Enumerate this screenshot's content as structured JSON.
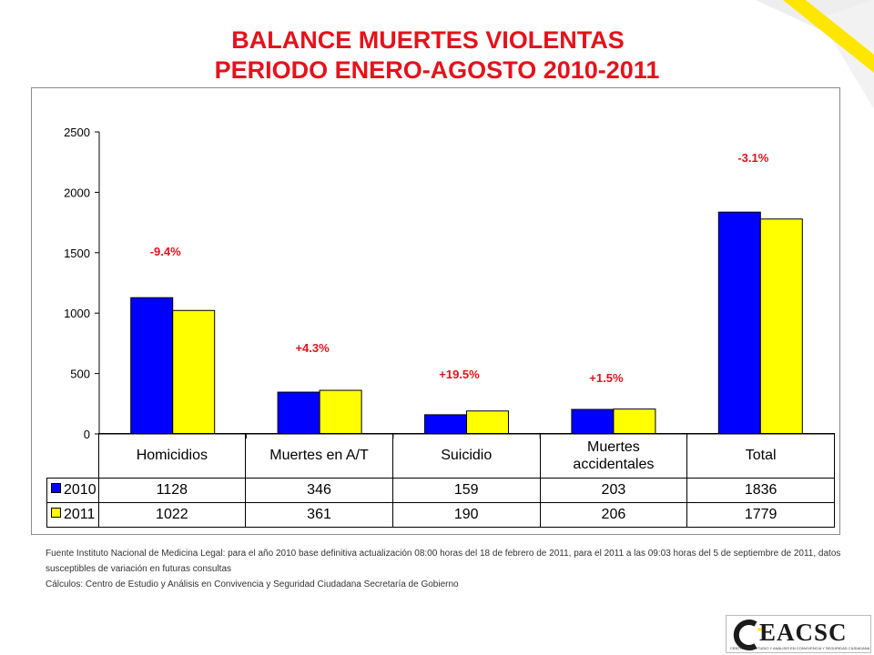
{
  "slide": {
    "title_line1": "BALANCE MUERTES VIOLENTAS",
    "title_line2": "PERIODO ENERO-AGOSTO 2010-2011",
    "footer_source": "Fuente Instituto Nacional de Medicina Legal: para el año 2010 base definitiva actualización 08:00 horas del 18 de febrero de 2011, para el 2011 a las 09:03 horas del 5 de septiembre de 2011, datos susceptibles de variación en futuras consultas",
    "footer_calc": "Cálculos: Centro de Estudio y Análisis en Convivencia y Seguridad Ciudadana Secretaría de Gobierno",
    "logo_text": "EACSC",
    "logo_subtitle": "CENTRO DE ESTUDIO Y ANÁLISIS EN CONVIVENCIA Y SEGURIDAD CIUDADANA"
  },
  "colors": {
    "title": "#e4121b",
    "series_2010": "#0000ff",
    "series_2011": "#ffff00",
    "annotation": "#e4121b",
    "decor_gray": "#eeeeee",
    "decor_yellow": "#ffe600"
  },
  "chart_data": {
    "type": "bar",
    "categories": [
      "Homicidios",
      "Muertes en A/T",
      "Suicidio",
      "Muertes accidentales",
      "Total"
    ],
    "series": [
      {
        "name": "2010",
        "values": [
          1128,
          346,
          159,
          203,
          1836
        ]
      },
      {
        "name": "2011",
        "values": [
          1022,
          361,
          190,
          206,
          1779
        ]
      }
    ],
    "annotations": [
      "-9.4%",
      "+4.3%",
      "+19.5%",
      "+1.5%",
      "-3.1%"
    ],
    "ylim": [
      0,
      2500
    ],
    "yticks": [
      0,
      500,
      1000,
      1500,
      2000,
      2500
    ],
    "data_table": true,
    "grid": false
  }
}
